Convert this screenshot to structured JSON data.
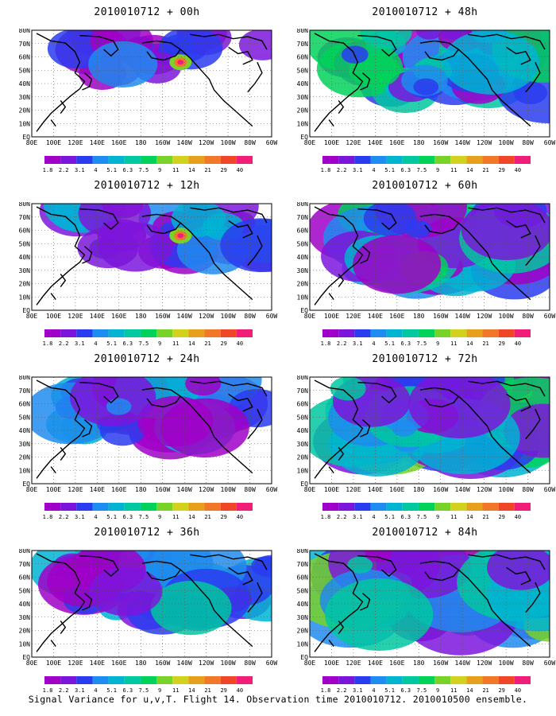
{
  "figure": {
    "caption": "Signal Variance for u,v,T. Flight 14. Observation time 2010010712. 2010010500 ensemble."
  },
  "colorbar": {
    "colors": [
      "#a000c8",
      "#7c15dc",
      "#2a3cf0",
      "#1e8cf0",
      "#00b4d2",
      "#00c8a0",
      "#00d25a",
      "#78d228",
      "#d2d21e",
      "#e6a01e",
      "#f07828",
      "#f04628",
      "#f01e78"
    ],
    "tick_labels": [
      "1.8",
      "2.2",
      "3.1",
      "4",
      "5.1",
      "6.3",
      "7.5",
      "9",
      "11",
      "14",
      "21",
      "29",
      "40"
    ]
  },
  "axes": {
    "lat_labels": [
      "80N",
      "70N",
      "60N",
      "50N",
      "40N",
      "30N",
      "20N",
      "10N",
      "EQ"
    ],
    "lon_labels": [
      "80E",
      "100E",
      "120E",
      "140E",
      "160E",
      "180",
      "160W",
      "140W",
      "120W",
      "100W",
      "80W",
      "60W"
    ]
  },
  "panels": [
    {
      "title": "2010010712 + 00h",
      "fill": 0.15
    },
    {
      "title": "2010010712 + 48h",
      "fill": 0.55
    },
    {
      "title": "2010010712 + 12h",
      "fill": 0.28
    },
    {
      "title": "2010010712 + 60h",
      "fill": 0.65
    },
    {
      "title": "2010010712 + 24h",
      "fill": 0.4
    },
    {
      "title": "2010010712 + 72h",
      "fill": 0.72
    },
    {
      "title": "2010010712 + 36h",
      "fill": 0.48
    },
    {
      "title": "2010010712 + 84h",
      "fill": 0.8
    }
  ]
}
